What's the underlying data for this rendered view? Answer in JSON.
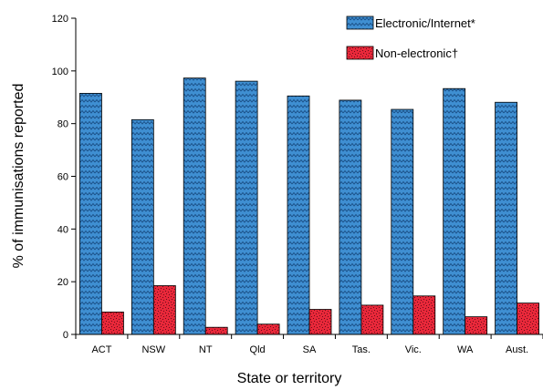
{
  "chart_data": {
    "type": "bar",
    "title": "",
    "xlabel": "State or territory",
    "ylabel": "% of immunisations reported",
    "ylim": [
      0,
      120
    ],
    "yticks": [
      0,
      20,
      40,
      60,
      80,
      100,
      120
    ],
    "categories": [
      "ACT",
      "NSW",
      "NT",
      "Qld",
      "SA",
      "Tas.",
      "Vic.",
      "WA",
      "Aust."
    ],
    "series": [
      {
        "name": "Electronic/Internet*",
        "color": "#3f8fd2",
        "pattern": "zigzag",
        "values": [
          91.5,
          81.5,
          97.3,
          96.1,
          90.5,
          88.9,
          85.4,
          93.3,
          88.1
        ]
      },
      {
        "name": "Non-electronic†",
        "color": "#e8283a",
        "pattern": "speckle",
        "values": [
          8.5,
          18.5,
          2.7,
          3.9,
          9.5,
          11.1,
          14.6,
          6.7,
          11.9
        ]
      }
    ],
    "legend_position": "top-right",
    "grid": false
  }
}
